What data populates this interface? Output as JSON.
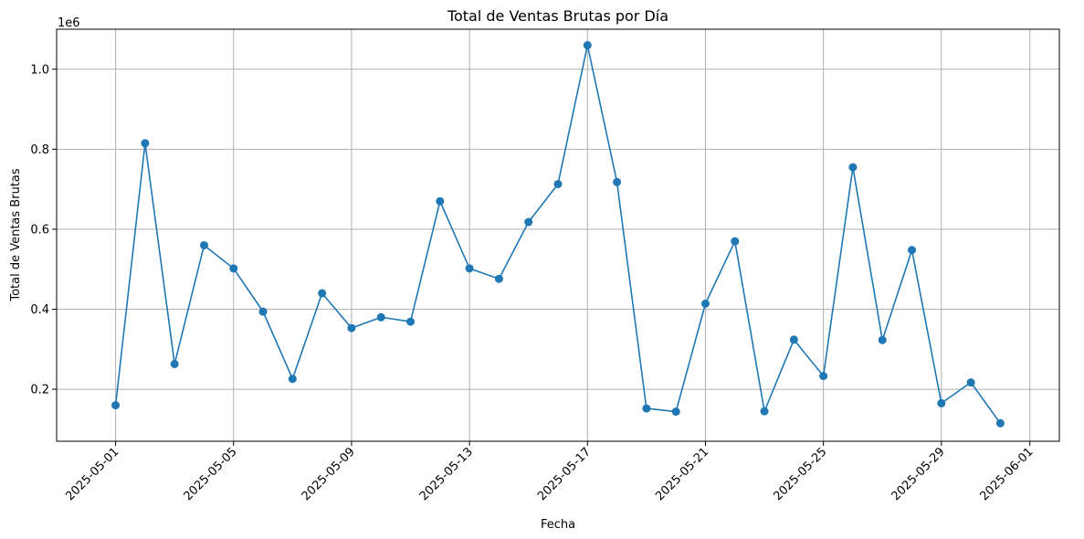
{
  "chart_data": {
    "type": "line",
    "title": "Total de Ventas Brutas por Día",
    "xlabel": "Fecha",
    "ylabel": "Total de Ventas Brutas",
    "y_offset_label": "1e6",
    "y_scale": 1000000,
    "xlim": [
      "2025-04-29",
      "2025-06-02"
    ],
    "ylim": [
      70000,
      1100000
    ],
    "x_ticks": [
      "2025-05-01",
      "2025-05-05",
      "2025-05-09",
      "2025-05-13",
      "2025-05-17",
      "2025-05-21",
      "2025-05-25",
      "2025-05-29",
      "2025-06-01"
    ],
    "y_ticks": [
      0.2,
      0.4,
      0.6,
      0.8,
      1.0
    ],
    "y_tick_labels": [
      "0.2",
      "0.4",
      "0.6",
      "0.8",
      "1.0"
    ],
    "grid": true,
    "color": "#1f77b4",
    "marker": "circle",
    "series": [
      {
        "x": [
          "2025-05-01",
          "2025-05-02",
          "2025-05-03",
          "2025-05-04",
          "2025-05-05",
          "2025-05-06",
          "2025-05-07",
          "2025-05-08",
          "2025-05-09",
          "2025-05-10",
          "2025-05-11",
          "2025-05-12",
          "2025-05-13",
          "2025-05-14",
          "2025-05-15",
          "2025-05-16",
          "2025-05-17",
          "2025-05-18",
          "2025-05-19",
          "2025-05-20",
          "2025-05-21",
          "2025-05-22",
          "2025-05-23",
          "2025-05-24",
          "2025-05-25",
          "2025-05-26",
          "2025-05-27",
          "2025-05-28",
          "2025-05-29",
          "2025-05-30",
          "2025-05-31"
        ],
        "values": [
          160000,
          815000,
          263000,
          560000,
          502000,
          394000,
          226000,
          440000,
          353000,
          380000,
          369000,
          670000,
          502000,
          476000,
          618000,
          713000,
          1060000,
          718000,
          152000,
          144000,
          414000,
          570000,
          145000,
          324000,
          233000,
          755000,
          323000,
          548000,
          165000,
          217000,
          115000
        ]
      }
    ]
  }
}
